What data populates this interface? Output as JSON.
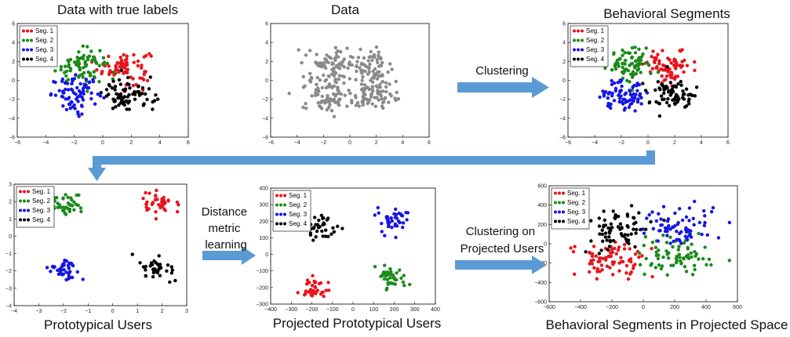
{
  "colors": {
    "seg1": "#e8141c",
    "seg2": "#1a8a1a",
    "seg3": "#1515e6",
    "seg4": "#000000",
    "data": "#8a8a8a",
    "arrow": "#5b9bd5"
  },
  "flow_labels": {
    "clustering": "Clustering",
    "distance_metric": [
      "Distance",
      "metric",
      "learning"
    ],
    "clustering_projected": [
      "Clustering on",
      "Projected Users"
    ]
  },
  "chart_data": [
    {
      "type": "scatter",
      "title": "Data with true labels",
      "xlim": [
        -6,
        6
      ],
      "ylim": [
        -6,
        6
      ],
      "xticks": [
        "−6",
        "−4",
        "−2",
        "0",
        "2",
        "4",
        "6"
      ],
      "yticks": [
        "6",
        "4",
        "2",
        "0",
        "−2",
        "−4",
        "−6"
      ],
      "legend": {
        "placement": "top-left",
        "entries": [
          "Seg. 1",
          "Seg. 2",
          "Seg. 3",
          "Seg. 4"
        ]
      },
      "series": [
        {
          "name": "Seg. 1",
          "color_key": "seg1",
          "center": [
            1.5,
            1.4
          ],
          "spread": [
            0.9,
            0.9
          ],
          "count": 75
        },
        {
          "name": "Seg. 2",
          "color_key": "seg2",
          "center": [
            -1.5,
            1.6
          ],
          "spread": [
            0.9,
            0.9
          ],
          "count": 75
        },
        {
          "name": "Seg. 3",
          "color_key": "seg3",
          "center": [
            -1.8,
            -1.5
          ],
          "spread": [
            0.9,
            0.9
          ],
          "count": 75
        },
        {
          "name": "Seg. 4",
          "color_key": "seg4",
          "center": [
            1.8,
            -1.6
          ],
          "spread": [
            0.9,
            0.9
          ],
          "count": 75
        }
      ]
    },
    {
      "type": "scatter",
      "title": "Data",
      "xlim": [
        -6,
        6
      ],
      "ylim": [
        -6,
        6
      ],
      "xticks": [
        "−6",
        "−4",
        "−2",
        "0",
        "2",
        "4",
        "6"
      ],
      "yticks": [
        "6",
        "4",
        "2",
        "0",
        "−2",
        "−4",
        "−6"
      ],
      "series": [
        {
          "color_key": "data",
          "center": [
            1.5,
            1.4
          ],
          "spread": [
            0.9,
            0.9
          ],
          "count": 75
        },
        {
          "color_key": "data",
          "center": [
            -1.5,
            1.6
          ],
          "spread": [
            0.9,
            0.9
          ],
          "count": 75
        },
        {
          "color_key": "data",
          "center": [
            -1.8,
            -1.5
          ],
          "spread": [
            0.9,
            0.9
          ],
          "count": 75
        },
        {
          "color_key": "data",
          "center": [
            1.8,
            -1.6
          ],
          "spread": [
            0.9,
            0.9
          ],
          "count": 75
        }
      ]
    },
    {
      "type": "scatter",
      "title": "Behavioral Segments",
      "xlim": [
        -6,
        6
      ],
      "ylim": [
        -6,
        6
      ],
      "xticks": [
        "−6",
        "−4",
        "−2",
        "0",
        "2",
        "4",
        "6"
      ],
      "yticks": [
        "6",
        "4",
        "2",
        "0",
        "−2",
        "−4",
        "−6"
      ],
      "legend": {
        "placement": "top-left",
        "entries": [
          "Seg. 1",
          "Seg. 2",
          "Seg. 3",
          "Seg. 4"
        ]
      },
      "series": [
        {
          "name": "Seg. 1",
          "color_key": "seg1",
          "center": [
            1.6,
            1.5
          ],
          "spread": [
            0.85,
            0.85
          ],
          "count": 75
        },
        {
          "name": "Seg. 2",
          "color_key": "seg2",
          "center": [
            -1.4,
            1.7
          ],
          "spread": [
            0.85,
            0.85
          ],
          "count": 75
        },
        {
          "name": "Seg. 3",
          "color_key": "seg3",
          "center": [
            -1.7,
            -1.5
          ],
          "spread": [
            0.85,
            0.85
          ],
          "count": 75
        },
        {
          "name": "Seg. 4",
          "color_key": "seg4",
          "center": [
            1.9,
            -1.5
          ],
          "spread": [
            0.85,
            0.85
          ],
          "count": 75
        }
      ]
    },
    {
      "type": "scatter",
      "title": "Prototypical Users",
      "xlim": [
        -4,
        3
      ],
      "ylim": [
        -4,
        3
      ],
      "xticks": [
        "−4",
        "−3",
        "−2",
        "−1",
        "0",
        "1",
        "2",
        "3"
      ],
      "yticks": [
        "3",
        "2",
        "1",
        "0",
        "−1",
        "−2",
        "−3",
        "−4"
      ],
      "legend": {
        "placement": "top-left",
        "entries": [
          "Seg. 1",
          "Seg. 2",
          "Seg. 3",
          "Seg. 4"
        ]
      },
      "series": [
        {
          "name": "Seg. 1",
          "color_key": "seg1",
          "center": [
            1.8,
            1.9
          ],
          "spread": [
            0.35,
            0.35
          ],
          "count": 40
        },
        {
          "name": "Seg. 2",
          "color_key": "seg2",
          "center": [
            -1.8,
            1.8
          ],
          "spread": [
            0.35,
            0.35
          ],
          "count": 40
        },
        {
          "name": "Seg. 3",
          "color_key": "seg3",
          "center": [
            -2.0,
            -2.0
          ],
          "spread": [
            0.35,
            0.35
          ],
          "count": 40
        },
        {
          "name": "Seg. 4",
          "color_key": "seg4",
          "center": [
            1.8,
            -1.8
          ],
          "spread": [
            0.35,
            0.35
          ],
          "count": 40
        }
      ]
    },
    {
      "type": "scatter",
      "title": "Projected Prototypical Users",
      "xlim": [
        -400,
        400
      ],
      "ylim": [
        -300,
        400
      ],
      "xticks": [
        "−400",
        "−300",
        "−200",
        "−100",
        "0",
        "100",
        "200",
        "300",
        "400"
      ],
      "yticks": [
        "400",
        "300",
        "200",
        "100",
        "0",
        "−100",
        "−200",
        "−300"
      ],
      "legend": {
        "placement": "top-left",
        "entries": [
          "Seg. 1",
          "Seg. 2",
          "Seg. 3",
          "Seg. 4"
        ]
      },
      "series": [
        {
          "name": "Seg. 1",
          "color_key": "seg1",
          "center": [
            -190,
            -200
          ],
          "spread": [
            35,
            35
          ],
          "count": 40
        },
        {
          "name": "Seg. 2",
          "color_key": "seg2",
          "center": [
            180,
            -140
          ],
          "spread": [
            35,
            35
          ],
          "count": 40
        },
        {
          "name": "Seg. 3",
          "color_key": "seg3",
          "center": [
            200,
            200
          ],
          "spread": [
            35,
            35
          ],
          "count": 40
        },
        {
          "name": "Seg. 4",
          "color_key": "seg4",
          "center": [
            -170,
            170
          ],
          "spread": [
            35,
            35
          ],
          "count": 40
        }
      ]
    },
    {
      "type": "scatter",
      "title": "Behavioral Segments in Projected Space",
      "xlim": [
        -600,
        600
      ],
      "ylim": [
        -600,
        600
      ],
      "xticks": [
        "−600",
        "−400",
        "−200",
        "0",
        "200",
        "400",
        "600"
      ],
      "yticks": [
        "600",
        "400",
        "200",
        "0",
        "−200",
        "−400",
        "−600"
      ],
      "legend": {
        "placement": "top-left",
        "entries": [
          "Seg. 1",
          "Seg. 2",
          "Seg. 3",
          "Seg. 4"
        ]
      },
      "series": [
        {
          "name": "Seg. 1",
          "color_key": "seg1",
          "center": [
            -200,
            -170
          ],
          "spread": [
            110,
            110
          ],
          "count": 75
        },
        {
          "name": "Seg. 2",
          "color_key": "seg2",
          "center": [
            200,
            -110
          ],
          "spread": [
            110,
            110
          ],
          "count": 75
        },
        {
          "name": "Seg. 3",
          "color_key": "seg3",
          "center": [
            220,
            180
          ],
          "spread": [
            110,
            110
          ],
          "count": 75
        },
        {
          "name": "Seg. 4",
          "color_key": "seg4",
          "center": [
            -150,
            150
          ],
          "spread": [
            110,
            110
          ],
          "count": 75
        }
      ]
    }
  ]
}
